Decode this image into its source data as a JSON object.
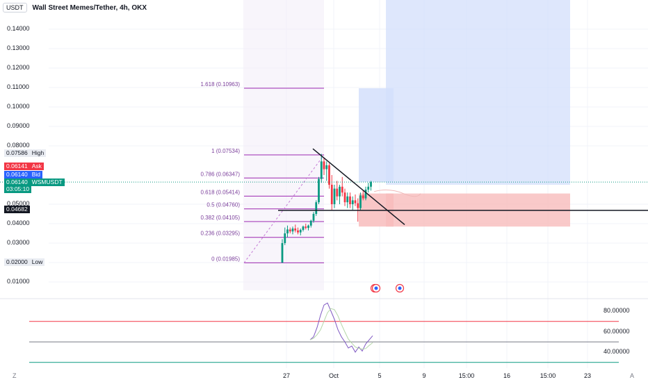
{
  "header": {
    "symbol_box": "USDT",
    "title": "Wall Street Memes/Tether, 4h, OKX"
  },
  "y_axis": {
    "labels": [
      "0.14000",
      "0.13000",
      "0.12000",
      "0.11000",
      "0.10000",
      "0.09000",
      "0.08000",
      "0.05000",
      "0.04000",
      "0.03000",
      "0.02000",
      "0.01000"
    ]
  },
  "price_tags": {
    "high": {
      "value": "0.07586",
      "label": "High",
      "color": "#e9ecf2"
    },
    "ask": {
      "value": "0.06141",
      "label": "Ask",
      "color": "#f23645"
    },
    "bid": {
      "value": "0.06140",
      "label": "Bid",
      "color": "#2962ff"
    },
    "last": {
      "value": "0.06140",
      "label": "WSMUSDT",
      "countdown": "03:05:10",
      "color": "#089981"
    },
    "line": {
      "value": "0.04682",
      "color": "#131722"
    },
    "low": {
      "value": "0.02000",
      "label": "Low",
      "color": "#e9ecf2"
    }
  },
  "x_axis": {
    "labels": [
      "27",
      "Oct",
      "5",
      "9",
      "15:00",
      "16",
      "15:00",
      "23"
    ]
  },
  "rsi_axis": {
    "labels": [
      "80.00000",
      "60.00000",
      "40.00000"
    ]
  },
  "corner": {
    "left": "Z",
    "right": "A"
  },
  "chart_data": {
    "type": "candlestick",
    "title": "Wall Street Memes/Tether, 4h, OKX",
    "y_range": [
      0.003,
      0.148
    ],
    "x_range": [
      0,
      480
    ],
    "fib_levels": [
      {
        "label": "1.618 (0.10963)",
        "value": 0.10963
      },
      {
        "label": "1 (0.07534)",
        "value": 0.07534
      },
      {
        "label": "0.786 (0.06347)",
        "value": 0.06347
      },
      {
        "label": "0.618 (0.05414)",
        "value": 0.05414
      },
      {
        "label": "0.5 (0.04760)",
        "value": 0.0476
      },
      {
        "label": "0.382 (0.04105)",
        "value": 0.04105
      },
      {
        "label": "0.236 (0.03295)",
        "value": 0.03295
      },
      {
        "label": "0 (0.01985)",
        "value": 0.01985
      }
    ],
    "horizontal_line": 0.04682,
    "last_price": 0.0614,
    "candles": [
      [
        0.0199,
        0.032,
        0.0199,
        0.03
      ],
      [
        0.03,
        0.038,
        0.029,
        0.035
      ],
      [
        0.035,
        0.039,
        0.033,
        0.037
      ],
      [
        0.037,
        0.038,
        0.035,
        0.036
      ],
      [
        0.036,
        0.0385,
        0.0345,
        0.0375
      ],
      [
        0.0375,
        0.0395,
        0.0355,
        0.0365
      ],
      [
        0.0365,
        0.038,
        0.0345,
        0.0355
      ],
      [
        0.0355,
        0.0375,
        0.034,
        0.0368
      ],
      [
        0.0368,
        0.039,
        0.036,
        0.0385
      ],
      [
        0.0385,
        0.04,
        0.037,
        0.0378
      ],
      [
        0.0378,
        0.0395,
        0.0365,
        0.039
      ],
      [
        0.039,
        0.042,
        0.038,
        0.0415
      ],
      [
        0.0415,
        0.046,
        0.0405,
        0.045
      ],
      [
        0.045,
        0.052,
        0.044,
        0.051
      ],
      [
        0.051,
        0.064,
        0.05,
        0.063
      ],
      [
        0.063,
        0.0759,
        0.061,
        0.072
      ],
      [
        0.072,
        0.074,
        0.065,
        0.068
      ],
      [
        0.068,
        0.072,
        0.062,
        0.07
      ],
      [
        0.07,
        0.071,
        0.058,
        0.06
      ],
      [
        0.06,
        0.065,
        0.047,
        0.05
      ],
      [
        0.05,
        0.06,
        0.048,
        0.058
      ],
      [
        0.058,
        0.062,
        0.052,
        0.054
      ],
      [
        0.054,
        0.06,
        0.05,
        0.059
      ],
      [
        0.059,
        0.064,
        0.054,
        0.056
      ],
      [
        0.056,
        0.058,
        0.049,
        0.051
      ],
      [
        0.051,
        0.056,
        0.048,
        0.054
      ],
      [
        0.054,
        0.056,
        0.048,
        0.05
      ],
      [
        0.05,
        0.054,
        0.047,
        0.052
      ],
      [
        0.052,
        0.055,
        0.049,
        0.0505
      ],
      [
        0.0505,
        0.053,
        0.041,
        0.048
      ],
      [
        0.048,
        0.056,
        0.047,
        0.0545
      ],
      [
        0.0545,
        0.057,
        0.052,
        0.053
      ],
      [
        0.053,
        0.059,
        0.052,
        0.0575
      ],
      [
        0.0575,
        0.061,
        0.056,
        0.059
      ],
      [
        0.059,
        0.062,
        0.057,
        0.0614
      ]
    ],
    "trendline": {
      "from": [
        0.078
      ],
      "to": [
        0.04
      ]
    },
    "rsi": {
      "y_range": [
        30,
        95
      ],
      "levels": [
        70,
        50,
        30
      ],
      "series": [
        52,
        55,
        64,
        76,
        86,
        88,
        80,
        72,
        62,
        55,
        50,
        44,
        46,
        40,
        45,
        41,
        48,
        52,
        56
      ]
    }
  }
}
